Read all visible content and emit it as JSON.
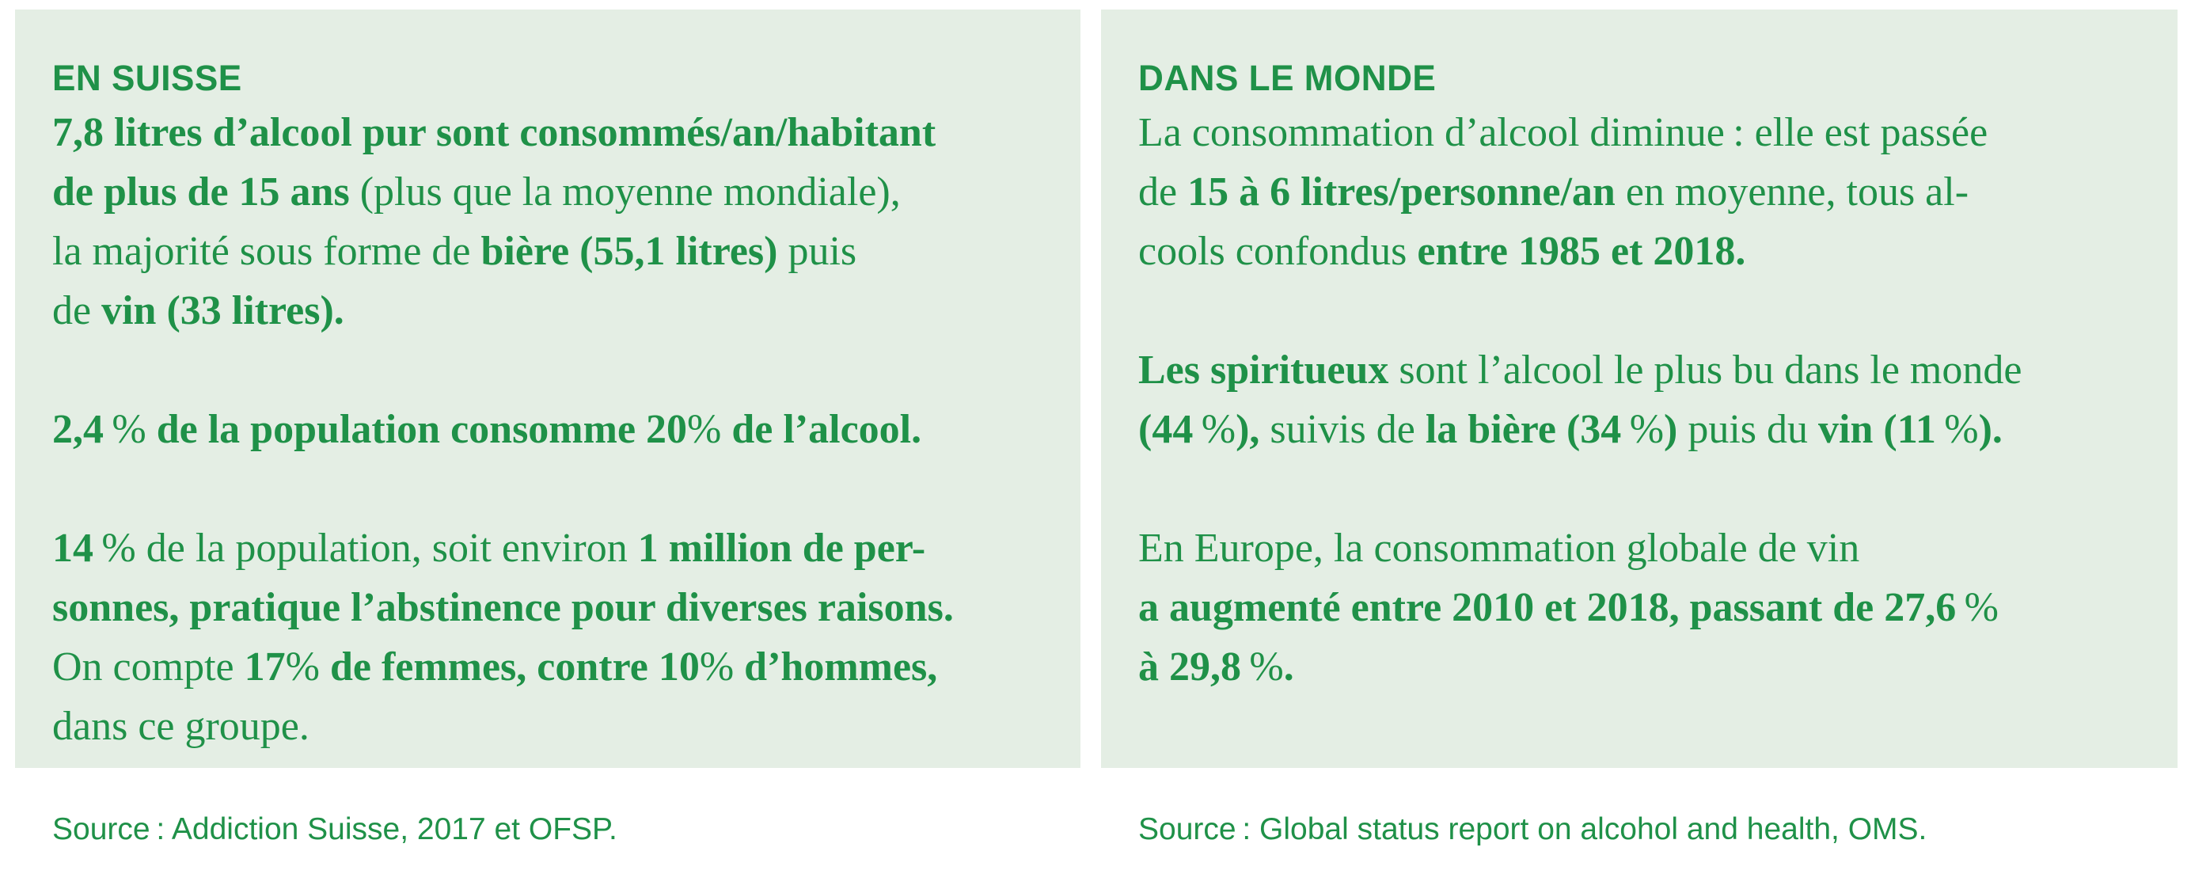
{
  "colors": {
    "accent": "#1f9148",
    "panel_bg": "#e4eee4",
    "page_bg": "#ffffff"
  },
  "left_panel": {
    "heading": "EN SUISSE",
    "lines": [
      [
        {
          "t": "7,8 litres d’alcool pur sont consommés/an/habitant",
          "b": true
        }
      ],
      [
        {
          "t": "de plus de 15 ans",
          "b": true
        },
        {
          "t": " (plus que la moyenne mondiale),",
          "b": false
        }
      ],
      [
        {
          "t": "la majorité sous forme de ",
          "b": false
        },
        {
          "t": "bière (55,1 litres)",
          "b": true
        },
        {
          "t": " puis",
          "b": false
        }
      ],
      [
        {
          "t": "de ",
          "b": false
        },
        {
          "t": "vin (33 litres).",
          "b": true
        }
      ],
      [],
      [
        {
          "t": "2,4",
          "b": true
        },
        {
          "t": " %",
          "b": false
        },
        {
          "t": " de la population consomme 20",
          "b": true
        },
        {
          "t": "%",
          "b": false
        },
        {
          "t": " de l’alcool.",
          "b": true
        }
      ],
      [],
      [
        {
          "t": "14",
          "b": true
        },
        {
          "t": " %",
          "b": false
        },
        {
          "t": " de la population, soit environ ",
          "b": false
        },
        {
          "t": "1 million de per-",
          "b": true
        }
      ],
      [
        {
          "t": "sonnes, pratique l’abstinence pour diverses raisons.",
          "b": true
        }
      ],
      [
        {
          "t": "On compte ",
          "b": false
        },
        {
          "t": "17",
          "b": true
        },
        {
          "t": "%",
          "b": false
        },
        {
          "t": " de femmes, contre 10",
          "b": true
        },
        {
          "t": "%",
          "b": false
        },
        {
          "t": " d’hommes,",
          "b": true
        }
      ],
      [
        {
          "t": "dans ce groupe.",
          "b": false
        }
      ]
    ]
  },
  "right_panel": {
    "heading": "DANS LE MONDE",
    "lines": [
      [
        {
          "t": "La consommation d’alcool diminue : elle est passée",
          "b": false
        }
      ],
      [
        {
          "t": "de ",
          "b": false
        },
        {
          "t": "15 à 6 litres/personne/an",
          "b": true
        },
        {
          "t": " en moyenne, tous al-",
          "b": false
        }
      ],
      [
        {
          "t": "cools confondus ",
          "b": false
        },
        {
          "t": "entre 1985 et 2018.",
          "b": true
        }
      ],
      [],
      [
        {
          "t": "Les spiritueux",
          "b": true
        },
        {
          "t": " sont l’alcool le plus bu dans le monde",
          "b": false
        }
      ],
      [
        {
          "t": "(44",
          "b": true
        },
        {
          "t": " %",
          "b": false
        },
        {
          "t": "),",
          "b": true
        },
        {
          "t": " suivis de ",
          "b": false
        },
        {
          "t": "la bière (34",
          "b": true
        },
        {
          "t": " %",
          "b": false
        },
        {
          "t": ")",
          "b": true
        },
        {
          "t": " puis du ",
          "b": false
        },
        {
          "t": "vin (11",
          "b": true
        },
        {
          "t": " %",
          "b": false
        },
        {
          "t": ").",
          "b": true
        }
      ],
      [],
      [
        {
          "t": "En Europe, la consommation globale de vin",
          "b": false
        }
      ],
      [
        {
          "t": "a augmenté entre 2010 et 2018, passant de 27,6",
          "b": true
        },
        {
          "t": " %",
          "b": false
        }
      ],
      [
        {
          "t": "à 29,8",
          "b": true
        },
        {
          "t": " %",
          "b": false
        },
        {
          "t": ".",
          "b": true
        }
      ]
    ]
  },
  "sources": {
    "left": "Source : Addiction Suisse, 2017 et OFSP.",
    "right": "Source : Global status report on alcohol and health, OMS."
  }
}
